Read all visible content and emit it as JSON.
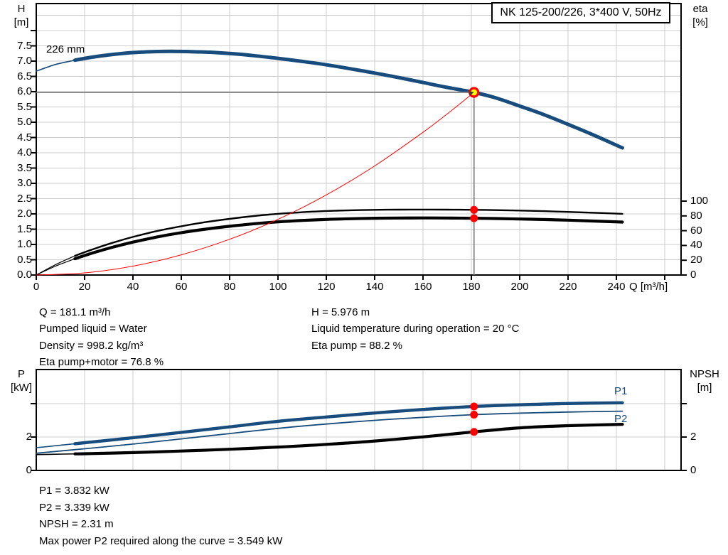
{
  "header": {
    "model_line": "NK 125-200/226, 3*400 V, 50Hz"
  },
  "colors": {
    "curve_blue": "#184C7C",
    "curve_black": "#000000",
    "system_curve_red": "#FF0000",
    "duty_marker_fill": "#FFFF00",
    "duty_marker_ring": "#FF0000",
    "duty_dot_red": "#FF0000",
    "duty_line_gray": "#808080",
    "grid_gray": "#CCCCCC",
    "axis_black": "#000000"
  },
  "operating_conditions": {
    "left": [
      "Q = 181.1 m³/h",
      "Pumped liquid = Water",
      "Density = 998.2 kg/m³",
      "Eta pump+motor = 76.8 %"
    ],
    "right": [
      "H = 5.976 m",
      "Liquid temperature during operation = 20 °C",
      "Eta pump = 88.2 %"
    ]
  },
  "results": [
    "P1 = 3.832 kW",
    "P2 = 3.339 kW",
    "NPSH = 2.31 m",
    "Max power P2 required along the curve = 3.549 kW"
  ],
  "chart_data": [
    {
      "type": "line",
      "title": "Pump performance curve: head and efficiency vs flow",
      "x_title": "Q [m³/h]",
      "x_tick_step": 20,
      "x_tick_labels": [
        "0",
        "20",
        "40",
        "60",
        "80",
        "100",
        "120",
        "140",
        "160",
        "180",
        "200",
        "220",
        "240"
      ],
      "x_extra_tick": true,
      "y_left_title": [
        "H",
        "[m]"
      ],
      "y_left_tick_step": 0.5,
      "y_left_tick_labels": [
        "0.0",
        "0.5",
        "1.0",
        "1.5",
        "2.0",
        "2.5",
        "3.0",
        "3.5",
        "4.0",
        "4.5",
        "5.0",
        "5.5",
        "6.0",
        "6.5",
        "7.0",
        "7.5"
      ],
      "y_left_extra_tick": true,
      "y_right_title": [
        "eta",
        "[%]"
      ],
      "y_right_tick_step": 20,
      "y_right_tick_labels": [
        "0",
        "20",
        "40",
        "60",
        "80",
        "100"
      ],
      "y_right_extra_tick": false,
      "curve_label": "226 mm",
      "series": [
        {
          "name": "head-curve-226mm",
          "label": "226 mm",
          "axis": "left",
          "color": "#184C7C",
          "segments": [
            {
              "width": 1.6,
              "points": [
                [
                  0,
                  6.67
                ],
                [
                  8,
                  6.89
                ],
                [
                  16,
                  7.03
                ]
              ]
            },
            {
              "width": 5.0,
              "points": [
                [
                  16,
                  7.03
                ],
                [
                  24,
                  7.14
                ],
                [
                  32,
                  7.22
                ],
                [
                  40,
                  7.28
                ],
                [
                  48,
                  7.31
                ],
                [
                  56,
                  7.32
                ],
                [
                  64,
                  7.31
                ],
                [
                  72,
                  7.29
                ],
                [
                  80,
                  7.25
                ],
                [
                  90,
                  7.18
                ],
                [
                  100,
                  7.09
                ],
                [
                  110,
                  6.99
                ],
                [
                  120,
                  6.88
                ],
                [
                  130,
                  6.75
                ],
                [
                  140,
                  6.61
                ],
                [
                  150,
                  6.46
                ],
                [
                  160,
                  6.3
                ],
                [
                  170,
                  6.14
                ],
                [
                  181.1,
                  5.976
                ],
                [
                  190,
                  5.8
                ],
                [
                  200,
                  5.53
                ],
                [
                  210,
                  5.25
                ],
                [
                  220,
                  4.93
                ],
                [
                  230,
                  4.6
                ],
                [
                  242.5,
                  4.16
                ]
              ]
            }
          ]
        },
        {
          "name": "eta-pump-curve",
          "label": "Eta pump",
          "axis": "right",
          "color": "#000000",
          "segments": [
            {
              "width": 1.2,
              "points": [
                [
                  0,
                  0
                ],
                [
                  8,
                  14
                ],
                [
                  16,
                  26
                ]
              ]
            },
            {
              "width": 2.4,
              "points": [
                [
                  16,
                  26
                ],
                [
                  24,
                  35.5
                ],
                [
                  32,
                  44
                ],
                [
                  40,
                  51.5
                ],
                [
                  50,
                  59.5
                ],
                [
                  60,
                  66
                ],
                [
                  70,
                  71.5
                ],
                [
                  80,
                  76
                ],
                [
                  90,
                  79.8
                ],
                [
                  100,
                  82.8
                ],
                [
                  110,
                  85
                ],
                [
                  120,
                  86.6
                ],
                [
                  130,
                  87.6
                ],
                [
                  140,
                  88.2
                ],
                [
                  150,
                  88.5
                ],
                [
                  160,
                  88.6
                ],
                [
                  170,
                  88.5
                ],
                [
                  181.1,
                  88.2
                ],
                [
                  190,
                  87.8
                ],
                [
                  200,
                  87.2
                ],
                [
                  210,
                  86.4
                ],
                [
                  220,
                  85.4
                ],
                [
                  230,
                  84.3
                ],
                [
                  242.5,
                  82.8
                ]
              ]
            }
          ]
        },
        {
          "name": "eta-pump-motor-curve",
          "label": "Eta pump+motor",
          "axis": "right",
          "color": "#000000",
          "segments": [
            {
              "width": 1.2,
              "points": [
                [
                  0,
                  0
                ],
                [
                  8,
                  12
                ],
                [
                  16,
                  22
                ]
              ]
            },
            {
              "width": 4.2,
              "points": [
                [
                  16,
                  22
                ],
                [
                  24,
                  30.5
                ],
                [
                  32,
                  38
                ],
                [
                  40,
                  44.5
                ],
                [
                  50,
                  51.5
                ],
                [
                  60,
                  57.3
                ],
                [
                  70,
                  62
                ],
                [
                  80,
                  66
                ],
                [
                  90,
                  69.3
                ],
                [
                  100,
                  71.9
                ],
                [
                  110,
                  73.8
                ],
                [
                  120,
                  75.2
                ],
                [
                  130,
                  76.2
                ],
                [
                  140,
                  76.8
                ],
                [
                  150,
                  77.1
                ],
                [
                  160,
                  77.2
                ],
                [
                  170,
                  77.1
                ],
                [
                  181.1,
                  76.8
                ],
                [
                  190,
                  76.4
                ],
                [
                  200,
                  75.8
                ],
                [
                  210,
                  75.1
                ],
                [
                  220,
                  74.2
                ],
                [
                  230,
                  73.1
                ],
                [
                  242.5,
                  71.6
                ]
              ]
            }
          ]
        },
        {
          "name": "system-curve",
          "label": "System curve",
          "axis": "left",
          "color": "#FF0000",
          "segments": [
            {
              "width": 1.0,
              "points": [
                [
                  0,
                  0
                ],
                [
                  20,
                  0.07
                ],
                [
                  40,
                  0.29
                ],
                [
                  60,
                  0.66
                ],
                [
                  80,
                  1.17
                ],
                [
                  100,
                  1.82
                ],
                [
                  120,
                  2.62
                ],
                [
                  140,
                  3.57
                ],
                [
                  160,
                  4.67
                ],
                [
                  170,
                  5.27
                ],
                [
                  181.1,
                  5.976
                ]
              ]
            }
          ]
        }
      ],
      "duty_point": {
        "q": 181.1,
        "h": 5.976,
        "eta_pump": 88.2,
        "eta_pump_motor": 76.8
      }
    },
    {
      "type": "line",
      "title": "Power and NPSH vs flow",
      "x_title": "",
      "x_tick_step": 20,
      "x_tick_labels": [],
      "x_extra_tick": false,
      "y_left_title": [
        "P",
        "[kW]"
      ],
      "y_left_tick_step": 2,
      "y_left_tick_labels": [
        "0",
        "2"
      ],
      "y_left_extra_tick": true,
      "y_right_title": [
        "NPSH",
        "[m]"
      ],
      "y_right_tick_step": 2,
      "y_right_tick_labels": [
        "0",
        "2"
      ],
      "y_right_extra_tick": true,
      "series": [
        {
          "name": "p1-curve",
          "label": "P1",
          "axis": "left",
          "color": "#184C7C",
          "segments": [
            {
              "width": 1.6,
              "points": [
                [
                  0,
                  1.36
                ],
                [
                  8,
                  1.48
                ],
                [
                  16,
                  1.6
                ]
              ]
            },
            {
              "width": 4.4,
              "points": [
                [
                  16,
                  1.6
                ],
                [
                  20,
                  1.66
                ],
                [
                  40,
                  1.96
                ],
                [
                  60,
                  2.28
                ],
                [
                  80,
                  2.61
                ],
                [
                  100,
                  2.94
                ],
                [
                  120,
                  3.2
                ],
                [
                  140,
                  3.44
                ],
                [
                  160,
                  3.65
                ],
                [
                  181.1,
                  3.832
                ],
                [
                  200,
                  3.93
                ],
                [
                  220,
                  4.01
                ],
                [
                  242.5,
                  4.05
                ]
              ]
            }
          ]
        },
        {
          "name": "p2-curve",
          "label": "P2",
          "axis": "left",
          "color": "#184C7C",
          "segments": [
            {
              "width": 1.8,
              "points": [
                [
                  0,
                  1.03
                ],
                [
                  20,
                  1.3
                ],
                [
                  40,
                  1.58
                ],
                [
                  60,
                  1.89
                ],
                [
                  80,
                  2.21
                ],
                [
                  100,
                  2.52
                ],
                [
                  120,
                  2.78
                ],
                [
                  140,
                  3.0
                ],
                [
                  160,
                  3.18
                ],
                [
                  181.1,
                  3.339
                ],
                [
                  200,
                  3.43
                ],
                [
                  220,
                  3.5
                ],
                [
                  242.5,
                  3.55
                ]
              ]
            }
          ]
        },
        {
          "name": "npsh-curve",
          "label": "NPSH",
          "axis": "right",
          "color": "#000000",
          "segments": [
            {
              "width": 1.6,
              "points": [
                [
                  0,
                  0.95
                ],
                [
                  8,
                  0.97
                ],
                [
                  16,
                  0.99
                ]
              ]
            },
            {
              "width": 4.2,
              "points": [
                [
                  16,
                  0.99
                ],
                [
                  20,
                  1.0
                ],
                [
                  40,
                  1.07
                ],
                [
                  60,
                  1.16
                ],
                [
                  80,
                  1.27
                ],
                [
                  100,
                  1.4
                ],
                [
                  120,
                  1.56
                ],
                [
                  140,
                  1.76
                ],
                [
                  160,
                  2.01
                ],
                [
                  181.1,
                  2.31
                ],
                [
                  200,
                  2.55
                ],
                [
                  220,
                  2.68
                ],
                [
                  242.5,
                  2.76
                ]
              ]
            }
          ]
        }
      ],
      "duty_point": {
        "q": 181.1,
        "p1": 3.832,
        "p2": 3.339,
        "npsh": 2.31
      }
    }
  ]
}
